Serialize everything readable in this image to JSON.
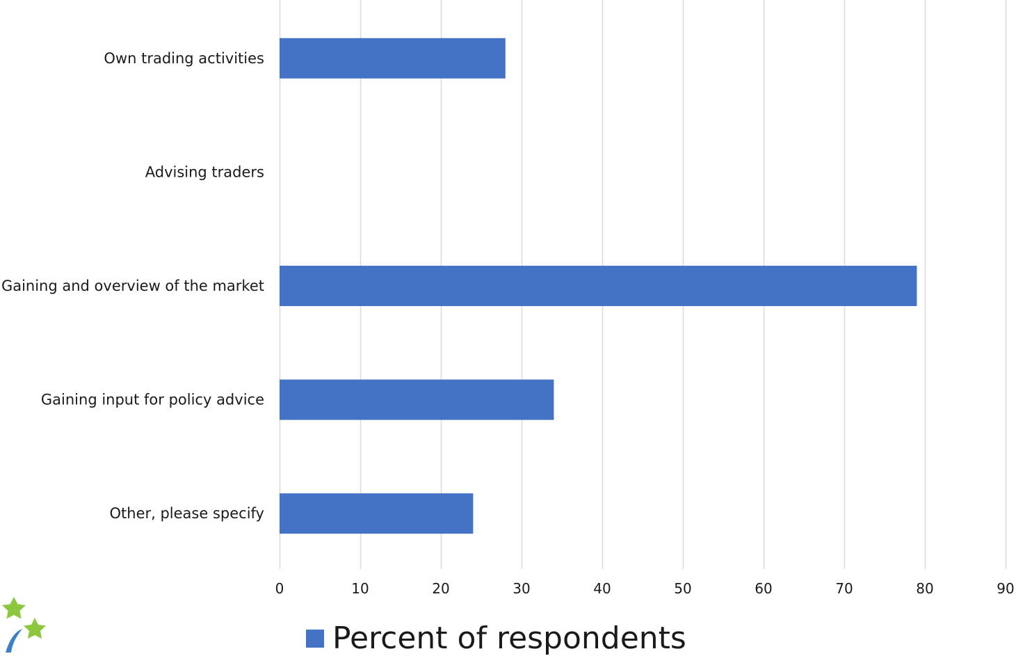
{
  "chart_data": {
    "type": "bar",
    "orientation": "horizontal",
    "categories": [
      "Own trading activities",
      "Advising traders",
      "Gaining and overview of the market",
      "Gaining input for policy advice",
      "Other, please specify"
    ],
    "series": [
      {
        "name": "Percent of respondents",
        "values": [
          28,
          0,
          79,
          34,
          24
        ],
        "color": "#4472C4"
      }
    ],
    "xlim": [
      0,
      90
    ],
    "x_ticks": [
      0,
      10,
      20,
      30,
      40,
      50,
      60,
      70,
      80,
      90
    ],
    "grid": "vertical",
    "legend_position": "bottom",
    "title": "",
    "xlabel": "",
    "ylabel": ""
  },
  "colors": {
    "bar": "#4472C4",
    "grid": "#d9d9d9",
    "logo_star": "#8dc63f"
  },
  "logo": {
    "icon": "star-logo-icon"
  }
}
